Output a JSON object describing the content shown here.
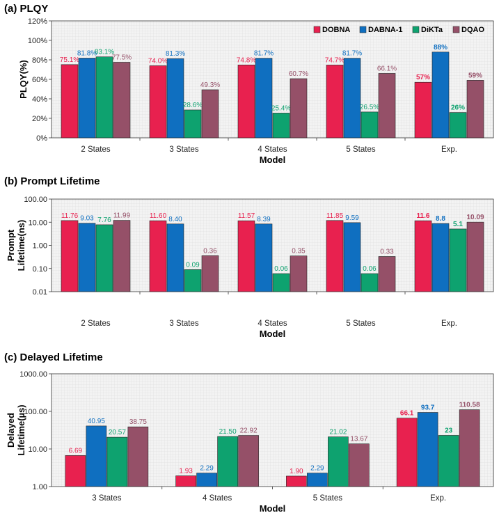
{
  "colors": {
    "DOBNA": "#e8214f",
    "DABNA-1": "#0f6fc0",
    "DiKTa": "#0ea26f",
    "DQAO": "#955068"
  },
  "chart_data": [
    {
      "type": "bar",
      "title": "(a) PLQY",
      "xlabel": "Model",
      "ylabel": "PLQY(%)",
      "yscale": "linear",
      "ylim": [
        0,
        120
      ],
      "yticks": [
        "0%",
        "20%",
        "40%",
        "60%",
        "80%",
        "100%",
        "120%"
      ],
      "legend": "top-right",
      "grid": true,
      "categories": [
        "2 States",
        "3 States",
        "4 States",
        "5 States",
        "Exp."
      ],
      "series": [
        {
          "name": "DOBNA",
          "values": [
            75.1,
            74.0,
            74.8,
            74.7,
            57
          ],
          "labels": [
            "75.1%",
            "74.0%",
            "74.8%",
            "74.7%",
            "57%"
          ]
        },
        {
          "name": "DABNA-1",
          "values": [
            81.8,
            81.3,
            81.7,
            81.7,
            88
          ],
          "labels": [
            "81.8%",
            "81.3%",
            "81.7%",
            "81.7%",
            "88%"
          ]
        },
        {
          "name": "DiKTa",
          "values": [
            83.1,
            28.6,
            25.4,
            26.5,
            26
          ],
          "labels": [
            "83.1%",
            "28.6%",
            "25.4%",
            "26.5%",
            "26%"
          ]
        },
        {
          "name": "DQAO",
          "values": [
            77.5,
            49.3,
            60.7,
            66.1,
            59
          ],
          "labels": [
            "77.5%",
            "49.3%",
            "60.7%",
            "66.1%",
            "59%"
          ]
        }
      ]
    },
    {
      "type": "bar",
      "title": "(b) Prompt Lifetime",
      "xlabel": "Model",
      "ylabel": "Prompt Lifetime(ns)",
      "ylabel_lines": [
        "Prompt",
        "Lifetime(ns)"
      ],
      "yscale": "log",
      "ylim": [
        0.01,
        100
      ],
      "yticks": [
        "0.01",
        "0.10",
        "1.00",
        "10.00",
        "100.00"
      ],
      "grid": true,
      "categories": [
        "2 States",
        "3 States",
        "4 States",
        "5 States",
        "Exp."
      ],
      "series": [
        {
          "name": "DOBNA",
          "values": [
            11.76,
            11.6,
            11.57,
            11.85,
            11.6
          ],
          "labels": [
            "11.76",
            "11.60",
            "11.57",
            "11.85",
            "11.6"
          ]
        },
        {
          "name": "DABNA-1",
          "values": [
            9.03,
            8.4,
            8.39,
            9.59,
            8.8
          ],
          "labels": [
            "9.03",
            "8.40",
            "8.39",
            "9.59",
            "8.8"
          ]
        },
        {
          "name": "DiKTa",
          "values": [
            7.76,
            0.09,
            0.06,
            0.06,
            5.1
          ],
          "labels": [
            "7.76",
            "0.09",
            "0.06",
            "0.06",
            "5.1"
          ]
        },
        {
          "name": "DQAO",
          "values": [
            11.99,
            0.36,
            0.35,
            0.33,
            10.09
          ],
          "labels": [
            "11.99",
            "0.36",
            "0.35",
            "0.33",
            "10.09"
          ]
        }
      ]
    },
    {
      "type": "bar",
      "title": "(c) Delayed Lifetime",
      "xlabel": "Model",
      "ylabel": "Delayed Lifetime(µs)",
      "ylabel_lines": [
        "Delayed",
        "Lifetime(µs)"
      ],
      "yscale": "log",
      "ylim": [
        1,
        1000
      ],
      "yticks": [
        "1.00",
        "10.00",
        "100.00",
        "1000.00"
      ],
      "grid": true,
      "categories": [
        "3 States",
        "4 States",
        "5 States",
        "Exp."
      ],
      "series": [
        {
          "name": "DOBNA",
          "values": [
            6.69,
            1.93,
            1.9,
            66.1
          ],
          "labels": [
            "6.69",
            "1.93",
            "1.90",
            "66.1"
          ]
        },
        {
          "name": "DABNA-1",
          "values": [
            40.95,
            2.29,
            2.29,
            93.7
          ],
          "labels": [
            "40.95",
            "2.29",
            "2.29",
            "93.7"
          ]
        },
        {
          "name": "DiKTa",
          "values": [
            20.57,
            21.5,
            21.02,
            23
          ],
          "labels": [
            "20.57",
            "21.50",
            "21.02",
            "23"
          ]
        },
        {
          "name": "DQAO",
          "values": [
            38.75,
            22.92,
            13.67,
            110.58
          ],
          "labels": [
            "38.75",
            "22.92",
            "13.67",
            "110.58"
          ]
        }
      ]
    }
  ]
}
